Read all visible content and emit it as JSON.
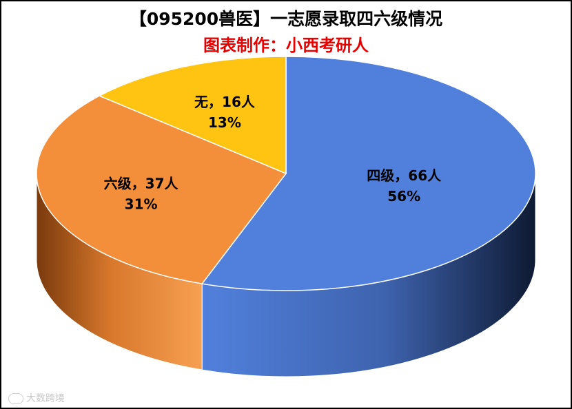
{
  "title": "【095200兽医】一志愿录取四六级情况",
  "subtitle": "图表制作：小西考研人",
  "watermark": "大数跨境",
  "chart_data": {
    "type": "pie",
    "title": "【095200兽医】一志愿录取四六级情况",
    "subtitle": "图表制作：小西考研人",
    "slices": [
      {
        "label": "四级",
        "value": 66,
        "percent": "56%",
        "color": "#5180DC"
      },
      {
        "label": "六级",
        "value": 37,
        "percent": "31%",
        "color": "#F38E3A"
      },
      {
        "label": "无",
        "value": 16,
        "percent": "13%",
        "color": "#FFC412"
      }
    ],
    "unit": "人",
    "style": "3d",
    "legend": "none"
  }
}
